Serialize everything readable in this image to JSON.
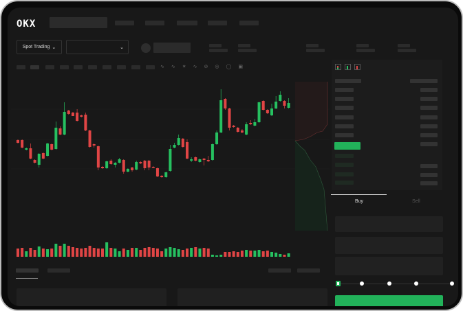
{
  "header": {
    "logo": "OKX"
  },
  "toolbar": {
    "market_select_label": "Spot Trading",
    "pair_select_value": ""
  },
  "order_form": {
    "tabs": [
      "Buy",
      "Sell"
    ],
    "active_tab": "Buy",
    "leverage_slider_value": 0
  },
  "colors": {
    "up": "#26c060",
    "down": "#e04545",
    "accent": "#22b25a",
    "background": "#181818"
  },
  "icons": [
    "chevron-down-icon",
    "order-book-both-icon",
    "order-book-bids-icon",
    "order-book-asks-icon",
    "indicator-icon",
    "draw-line-icon",
    "settings-icon",
    "fullscreen-icon"
  ],
  "chart_data": {
    "type": "candlestick",
    "candles_ohlc": [
      [
        62,
        63,
        57,
        58
      ],
      [
        62,
        63,
        50,
        51
      ],
      [
        48,
        51,
        47,
        50
      ],
      [
        50,
        57,
        34,
        35
      ],
      [
        33,
        34,
        28,
        29
      ],
      [
        26,
        43,
        22,
        42
      ],
      [
        43,
        44,
        34,
        35
      ],
      [
        39,
        58,
        38,
        57
      ],
      [
        56,
        57,
        47,
        48
      ],
      [
        49,
        89,
        48,
        80
      ],
      [
        79,
        82,
        69,
        70
      ],
      [
        70,
        117,
        69,
        103
      ],
      [
        105,
        106,
        99,
        100
      ],
      [
        102,
        103,
        97,
        97
      ],
      [
        102,
        107,
        89,
        90
      ],
      [
        98,
        99,
        95,
        96
      ],
      [
        99,
        102,
        75,
        76
      ],
      [
        76,
        77,
        51,
        52
      ],
      [
        56,
        57,
        51,
        54
      ],
      [
        53,
        54,
        18,
        22
      ],
      [
        23,
        24,
        20,
        21
      ],
      [
        21,
        32,
        20,
        31
      ],
      [
        32,
        34,
        26,
        27
      ],
      [
        26,
        30,
        22,
        29
      ],
      [
        29,
        36,
        28,
        34
      ],
      [
        33,
        34,
        13,
        16
      ],
      [
        16,
        21,
        15,
        20
      ],
      [
        22,
        23,
        16,
        18
      ],
      [
        19,
        32,
        18,
        30
      ],
      [
        30,
        31,
        27,
        28
      ],
      [
        32,
        33,
        18,
        21
      ],
      [
        32,
        33,
        18,
        22
      ],
      [
        23,
        24,
        21,
        22
      ],
      [
        21,
        22,
        8,
        9
      ],
      [
        10,
        11,
        7,
        8
      ],
      [
        8,
        16,
        7,
        15
      ],
      [
        17,
        55,
        16,
        49
      ],
      [
        51,
        58,
        50,
        55
      ],
      [
        55,
        70,
        54,
        65
      ],
      [
        64,
        65,
        51,
        52
      ],
      [
        59,
        63,
        34,
        35
      ],
      [
        32,
        37,
        30,
        34
      ],
      [
        37,
        38,
        31,
        32
      ],
      [
        30,
        35,
        29,
        34
      ],
      [
        35,
        36,
        25,
        33
      ],
      [
        33,
        39,
        30,
        31
      ],
      [
        33,
        57,
        32,
        56
      ],
      [
        56,
        76,
        55,
        73
      ],
      [
        73,
        136,
        72,
        120
      ],
      [
        122,
        123,
        106,
        108
      ],
      [
        108,
        109,
        76,
        80
      ],
      [
        83,
        84,
        80,
        81
      ],
      [
        80,
        81,
        73,
        74
      ],
      [
        76,
        78,
        72,
        73
      ],
      [
        70,
        88,
        69,
        85
      ],
      [
        87,
        91,
        84,
        85
      ],
      [
        83,
        93,
        82,
        88
      ],
      [
        88,
        118,
        87,
        117
      ],
      [
        119,
        120,
        105,
        106
      ],
      [
        106,
        107,
        100,
        101
      ],
      [
        98,
        115,
        97,
        108
      ],
      [
        108,
        126,
        107,
        118
      ],
      [
        119,
        133,
        118,
        128
      ],
      [
        119,
        120,
        108,
        112
      ],
      [
        109,
        123,
        108,
        116
      ]
    ],
    "volume": [
      12,
      13,
      8,
      13,
      10,
      15,
      12,
      11,
      12,
      19,
      16,
      19,
      16,
      14,
      13,
      12,
      13,
      16,
      13,
      12,
      12,
      21,
      13,
      12,
      8,
      12,
      10,
      13,
      13,
      10,
      13,
      14,
      13,
      12,
      8,
      12,
      14,
      13,
      11,
      10,
      12,
      13,
      14,
      12,
      13,
      12,
      3,
      2,
      3,
      7,
      7,
      8,
      7,
      9,
      10,
      9,
      9,
      10,
      8,
      9,
      7,
      6,
      4,
      3,
      5
    ]
  }
}
